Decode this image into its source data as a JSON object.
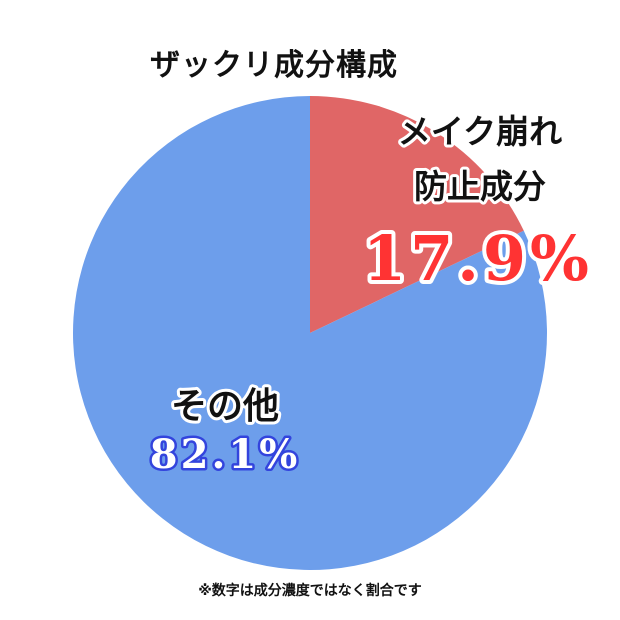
{
  "chart_data": {
    "type": "pie",
    "title": "ザックリ成分構成",
    "slices": [
      {
        "label_lines": [
          "メイク崩れ",
          "防止成分"
        ],
        "value": 17.9,
        "value_text": "17.9%",
        "color": "#e06666"
      },
      {
        "label_lines": [
          "その他"
        ],
        "value": 82.1,
        "value_text": "82.1%",
        "color": "#6d9eeb"
      }
    ],
    "footnote": "※数字は成分濃度ではなく割合です"
  }
}
